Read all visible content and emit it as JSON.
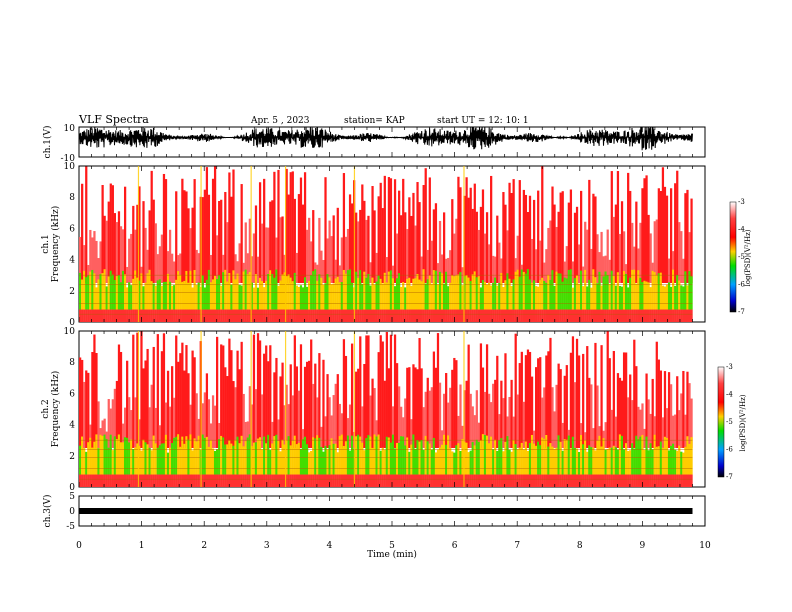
{
  "header": {
    "title": "VLF Spectra",
    "date": "Apr. 5 , 2023",
    "station": "station= KAP",
    "start": "start UT = 12: 10: 1"
  },
  "colors": {
    "background": "#ffffff",
    "ink": "#000000",
    "spectrogram_high": "#ff0000",
    "spectrogram_mid": "#ffd000",
    "spectrogram_low": "#00dd00"
  },
  "chart_data": [
    {
      "type": "line",
      "name": "ch1-waveform",
      "ylabel": "ch.1(V)",
      "ylim": [
        -10,
        10
      ],
      "yticks": [
        "10",
        "-10"
      ],
      "xlim": [
        0,
        10
      ],
      "description_values": "Dense noisy trace filling upper half; envelope fluctuates roughly between -3 and +10 V"
    },
    {
      "type": "heatmap",
      "name": "ch1-spectrogram",
      "ylabel": "ch.1 Frequency (kHz)",
      "ylim": [
        0,
        10
      ],
      "yticks": [
        "10",
        "8",
        "6",
        "4",
        "2",
        "0"
      ],
      "xlim": [
        0,
        9.8
      ],
      "colorbar": {
        "label": "log(PSD)(V²/Hz)",
        "range": [
          -7,
          -3
        ],
        "ticks": [
          "-3",
          "-4",
          "-5",
          "-6",
          "-7"
        ]
      },
      "bands_khz": [
        0.5,
        1.2,
        1.9,
        2.4,
        3.0
      ]
    },
    {
      "type": "heatmap",
      "name": "ch2-spectrogram",
      "ylabel": "ch.2 Frequency (kHz)",
      "ylim": [
        0,
        10
      ],
      "yticks": [
        "10",
        "8",
        "6",
        "4",
        "2",
        "0"
      ],
      "xlim": [
        0,
        9.8
      ],
      "colorbar": {
        "label": "log(PSD)(V²/Hz)",
        "range": [
          -7,
          -3
        ],
        "ticks": [
          "-3",
          "-4",
          "-5",
          "-6",
          "-7"
        ]
      },
      "bands_khz": [
        0.5,
        1.2,
        1.9,
        2.4,
        3.0
      ]
    },
    {
      "type": "line",
      "name": "ch3-waveform",
      "ylabel": "ch.3(V)",
      "ylim": [
        -5,
        5
      ],
      "yticks": [
        "5",
        "0",
        "-5"
      ],
      "xlim": [
        0,
        10
      ],
      "description_values": "Thick near-constant band around -1 V"
    }
  ],
  "xaxis": {
    "label": "Time (min)",
    "ticks": [
      "0",
      "1",
      "2",
      "3",
      "4",
      "5",
      "6",
      "7",
      "8",
      "9",
      "10"
    ]
  }
}
